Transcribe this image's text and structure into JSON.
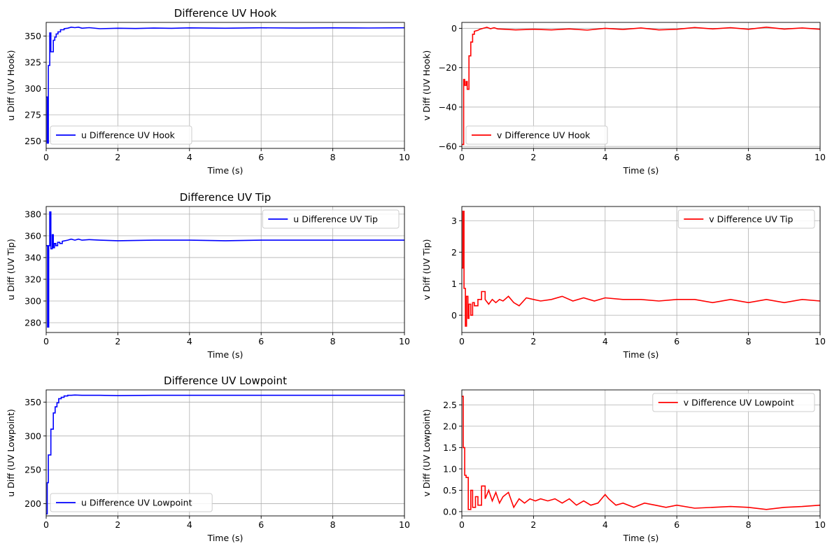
{
  "chart_data": [
    {
      "type": "line",
      "title": "Difference UV Hook",
      "xlabel": "Time (s)",
      "ylabel": "u Diff (UV Hook)",
      "xlim": [
        0,
        10
      ],
      "ylim": [
        243,
        363
      ],
      "xticks": [
        0,
        2,
        4,
        6,
        8,
        10
      ],
      "yticks": [
        250,
        275,
        300,
        325,
        350
      ],
      "grid": true,
      "legend": "lower-left",
      "series": [
        {
          "name": "u Difference UV Hook",
          "color": "#0000ff",
          "x": [
            0,
            0.03,
            0.03,
            0.06,
            0.06,
            0.1,
            0.1,
            0.13,
            0.13,
            0.15,
            0.15,
            0.2,
            0.2,
            0.24,
            0.24,
            0.28,
            0.28,
            0.33,
            0.33,
            0.4,
            0.4,
            0.5,
            0.5,
            0.6,
            0.7,
            0.8,
            0.9,
            1.0,
            1.2,
            1.5,
            2.0,
            2.5,
            3.0,
            3.5,
            4.0,
            5.0,
            6.0,
            7.0,
            8.0,
            9.0,
            10.0
          ],
          "y": [
            292,
            292,
            248,
            248,
            322,
            322,
            353,
            353,
            335,
            335,
            335,
            335,
            346,
            346,
            349,
            349,
            352,
            352,
            354,
            354,
            356,
            356,
            357,
            357.5,
            358.5,
            358,
            358.5,
            357.5,
            358,
            357,
            357.5,
            357.2,
            357.6,
            357.4,
            357.8,
            357.5,
            357.9,
            357.6,
            357.8,
            357.7,
            357.9
          ]
        }
      ]
    },
    {
      "type": "line",
      "title": "",
      "xlabel": "Time (s)",
      "ylabel": "v Diff (UV Hook)",
      "xlim": [
        0,
        10
      ],
      "ylim": [
        -61,
        3
      ],
      "xticks": [
        0,
        2,
        4,
        6,
        8,
        10
      ],
      "yticks": [
        -60,
        -40,
        -20,
        0
      ],
      "grid": true,
      "legend": "lower-left",
      "series": [
        {
          "name": "v Difference UV Hook",
          "color": "#ff0000",
          "x": [
            0,
            0.05,
            0.05,
            0.08,
            0.08,
            0.12,
            0.12,
            0.15,
            0.15,
            0.2,
            0.2,
            0.25,
            0.25,
            0.3,
            0.3,
            0.35,
            0.35,
            0.45,
            0.5,
            0.6,
            0.7,
            0.8,
            0.9,
            1.0,
            1.2,
            1.5,
            2.0,
            2.5,
            3.0,
            3.5,
            4.0,
            4.5,
            5.0,
            5.5,
            6.0,
            6.5,
            7.0,
            7.5,
            8.0,
            8.5,
            9.0,
            9.5,
            10.0
          ],
          "y": [
            -59,
            -59,
            -26,
            -26,
            -29,
            -29,
            -27,
            -27,
            -31,
            -31,
            -14,
            -14,
            -7,
            -7,
            -3,
            -3,
            -1.5,
            -1,
            -0.5,
            0,
            0.5,
            -0.2,
            0.3,
            -0.3,
            -0.5,
            -0.8,
            -0.5,
            -0.8,
            -0.3,
            -0.9,
            0,
            -0.6,
            0.2,
            -0.8,
            -0.5,
            0.4,
            -0.3,
            0.3,
            -0.5,
            0.6,
            -0.4,
            0.2,
            -0.5
          ]
        }
      ]
    },
    {
      "type": "line",
      "title": "Difference UV Tip",
      "xlabel": "Time (s)",
      "ylabel": "u Diff (UV Tip)",
      "xlim": [
        0,
        10
      ],
      "ylim": [
        271,
        387
      ],
      "xticks": [
        0,
        2,
        4,
        6,
        8,
        10
      ],
      "yticks": [
        280,
        300,
        320,
        340,
        360,
        380
      ],
      "grid": true,
      "legend": "upper-right",
      "series": [
        {
          "name": "u Difference UV Tip",
          "color": "#0000ff",
          "x": [
            0,
            0.04,
            0.04,
            0.07,
            0.07,
            0.1,
            0.1,
            0.13,
            0.13,
            0.17,
            0.17,
            0.2,
            0.2,
            0.23,
            0.23,
            0.27,
            0.27,
            0.32,
            0.32,
            0.38,
            0.38,
            0.45,
            0.45,
            0.6,
            0.7,
            0.8,
            0.9,
            1.0,
            1.2,
            1.5,
            2.0,
            3.0,
            4.0,
            5.0,
            6.0,
            7.0,
            8.0,
            9.0,
            10.0
          ],
          "y": [
            351,
            351,
            276,
            276,
            351,
            351,
            382,
            382,
            348,
            348,
            361,
            361,
            349,
            349,
            353,
            353,
            351,
            351,
            354,
            354,
            353,
            353,
            355,
            356,
            357,
            356,
            357,
            356,
            356.5,
            356,
            355.5,
            356,
            356,
            355.5,
            356,
            356,
            356,
            356,
            356
          ]
        }
      ]
    },
    {
      "type": "line",
      "title": "",
      "xlabel": "Time (s)",
      "ylabel": "v Diff (UV Tip)",
      "xlim": [
        0,
        10
      ],
      "ylim": [
        -0.55,
        3.45
      ],
      "xticks": [
        0,
        2,
        4,
        6,
        8,
        10
      ],
      "yticks": [
        0,
        1,
        2,
        3
      ],
      "grid": true,
      "legend": "upper-right",
      "series": [
        {
          "name": "v Difference UV Tip",
          "color": "#ff0000",
          "x": [
            0,
            0.03,
            0.03,
            0.06,
            0.06,
            0.1,
            0.1,
            0.13,
            0.13,
            0.17,
            0.17,
            0.2,
            0.2,
            0.25,
            0.25,
            0.3,
            0.3,
            0.35,
            0.35,
            0.45,
            0.45,
            0.55,
            0.55,
            0.65,
            0.65,
            0.75,
            0.85,
            0.95,
            1.05,
            1.15,
            1.3,
            1.45,
            1.6,
            1.8,
            2.0,
            2.2,
            2.5,
            2.8,
            3.1,
            3.4,
            3.7,
            4.0,
            4.5,
            5.0,
            5.5,
            6.0,
            6.5,
            7.0,
            7.5,
            8.0,
            8.5,
            9.0,
            9.5,
            10.0
          ],
          "y": [
            1.5,
            1.5,
            3.3,
            3.3,
            0.85,
            0.85,
            -0.35,
            -0.35,
            0.6,
            0.6,
            -0.1,
            -0.1,
            0.35,
            0.35,
            0.0,
            0.0,
            0.4,
            0.4,
            0.3,
            0.3,
            0.5,
            0.5,
            0.75,
            0.75,
            0.5,
            0.35,
            0.5,
            0.4,
            0.5,
            0.45,
            0.6,
            0.4,
            0.3,
            0.55,
            0.5,
            0.45,
            0.5,
            0.6,
            0.45,
            0.55,
            0.45,
            0.55,
            0.5,
            0.5,
            0.45,
            0.5,
            0.5,
            0.4,
            0.5,
            0.4,
            0.5,
            0.4,
            0.5,
            0.45
          ]
        }
      ]
    },
    {
      "type": "line",
      "title": "Difference UV Lowpoint",
      "xlabel": "Time (s)",
      "ylabel": "u Diff (UV Lowpoint)",
      "xlim": [
        0,
        10
      ],
      "ylim": [
        182,
        368
      ],
      "xticks": [
        0,
        2,
        4,
        6,
        8,
        10
      ],
      "yticks": [
        200,
        250,
        300,
        350
      ],
      "grid": true,
      "legend": "lower-left",
      "series": [
        {
          "name": "u Difference UV Lowpoint",
          "color": "#0000ff",
          "x": [
            0,
            0.03,
            0.03,
            0.06,
            0.06,
            0.13,
            0.13,
            0.2,
            0.2,
            0.25,
            0.25,
            0.3,
            0.3,
            0.35,
            0.35,
            0.42,
            0.42,
            0.5,
            0.5,
            0.6,
            0.6,
            0.7,
            0.8,
            1.0,
            1.5,
            2.0,
            3.0,
            4.0,
            5.0,
            6.0,
            7.0,
            8.0,
            9.0,
            10.0
          ],
          "y": [
            185,
            185,
            231,
            231,
            272,
            272,
            310,
            310,
            334,
            334,
            343,
            343,
            349,
            349,
            355,
            355,
            357,
            357,
            359,
            359,
            360,
            360,
            360.5,
            360,
            360,
            359.5,
            360,
            360,
            360,
            360,
            360,
            360,
            360,
            360
          ]
        }
      ]
    },
    {
      "type": "line",
      "title": "",
      "xlabel": "Time (s)",
      "ylabel": "v Diff (UV Lowpoint)",
      "xlim": [
        0,
        10
      ],
      "ylim": [
        -0.1,
        2.85
      ],
      "xticks": [
        0,
        2,
        4,
        6,
        8,
        10
      ],
      "yticks": [
        0.0,
        0.5,
        1.0,
        1.5,
        2.0,
        2.5
      ],
      "grid": true,
      "legend": "upper-right",
      "series": [
        {
          "name": "v Difference UV Lowpoint",
          "color": "#ff0000",
          "x": [
            0,
            0.04,
            0.04,
            0.08,
            0.08,
            0.12,
            0.12,
            0.18,
            0.18,
            0.25,
            0.25,
            0.3,
            0.3,
            0.38,
            0.38,
            0.45,
            0.45,
            0.55,
            0.55,
            0.65,
            0.65,
            0.75,
            0.85,
            0.95,
            1.05,
            1.15,
            1.3,
            1.45,
            1.6,
            1.75,
            1.9,
            2.05,
            2.2,
            2.4,
            2.6,
            2.8,
            3.0,
            3.2,
            3.4,
            3.6,
            3.8,
            4.0,
            4.1,
            4.3,
            4.5,
            4.8,
            5.1,
            5.4,
            5.7,
            6.0,
            6.5,
            7.0,
            7.5,
            8.0,
            8.5,
            9.0,
            9.5,
            10.0
          ],
          "y": [
            2.7,
            2.7,
            1.5,
            1.5,
            0.85,
            0.85,
            0.8,
            0.8,
            0.05,
            0.05,
            0.5,
            0.5,
            0.1,
            0.1,
            0.35,
            0.35,
            0.15,
            0.15,
            0.6,
            0.6,
            0.3,
            0.5,
            0.25,
            0.45,
            0.2,
            0.35,
            0.45,
            0.1,
            0.3,
            0.2,
            0.3,
            0.25,
            0.3,
            0.25,
            0.3,
            0.2,
            0.3,
            0.15,
            0.25,
            0.15,
            0.2,
            0.4,
            0.3,
            0.15,
            0.2,
            0.1,
            0.2,
            0.15,
            0.1,
            0.15,
            0.08,
            0.1,
            0.12,
            0.1,
            0.05,
            0.1,
            0.12,
            0.15
          ]
        }
      ]
    }
  ]
}
